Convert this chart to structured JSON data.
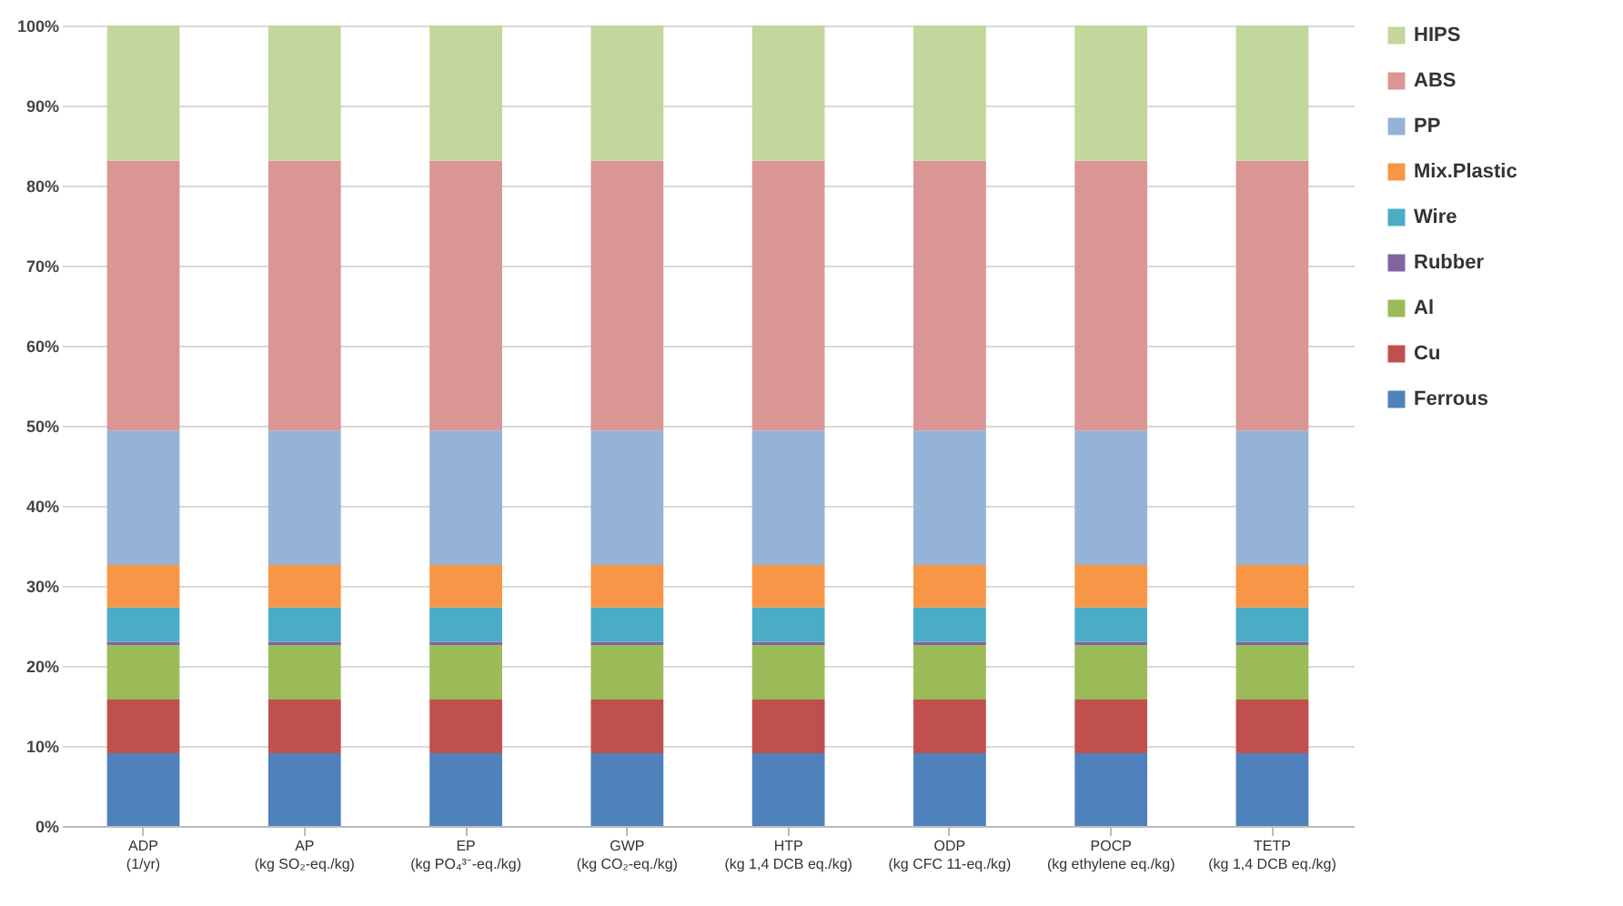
{
  "chart_data": {
    "type": "bar",
    "stacked": true,
    "categories": [
      "ADP\n(1/yr)",
      "AP\n(kg SO₂-eq./kg)",
      "EP\n(kg PO₄³⁻-eq./kg)",
      "GWP\n(kg CO₂-eq./kg)",
      "HTP\n(kg 1,4 DCB eq./kg)",
      "ODP\n(kg CFC 11-eq./kg)",
      "POCP\n(kg ethylene eq./kg)",
      "TETP\n(kg 1,4 DCB eq./kg)"
    ],
    "series": [
      {
        "name": "Ferrous",
        "color": "#4f81bd",
        "values": [
          9.1,
          9.1,
          9.1,
          9.1,
          9.1,
          9.1,
          9.1,
          9.1
        ]
      },
      {
        "name": "Cu",
        "color": "#c0504d",
        "values": [
          6.7,
          6.7,
          6.7,
          6.7,
          6.7,
          6.7,
          6.7,
          6.7
        ]
      },
      {
        "name": "Al",
        "color": "#9bbb59",
        "values": [
          6.8,
          6.8,
          6.8,
          6.8,
          6.8,
          6.8,
          6.8,
          6.8
        ]
      },
      {
        "name": "Rubber",
        "color": "#8064a2",
        "values": [
          0.4,
          0.4,
          0.4,
          0.4,
          0.4,
          0.4,
          0.4,
          0.4
        ]
      },
      {
        "name": "Wire",
        "color": "#4bacc6",
        "values": [
          4.3,
          4.3,
          4.3,
          4.3,
          4.3,
          4.3,
          4.3,
          4.3
        ]
      },
      {
        "name": "Mix.Plastic",
        "color": "#f79646",
        "values": [
          5.3,
          5.3,
          5.3,
          5.3,
          5.3,
          5.3,
          5.3,
          5.3
        ]
      },
      {
        "name": "PP",
        "color": "#95b3d7",
        "values": [
          16.8,
          16.8,
          16.8,
          16.8,
          16.8,
          16.8,
          16.8,
          16.8
        ]
      },
      {
        "name": "ABS",
        "color": "#d99694",
        "values": [
          33.7,
          33.7,
          33.7,
          33.7,
          33.7,
          33.7,
          33.7,
          33.7
        ]
      },
      {
        "name": "HIPS",
        "color": "#c3d69b",
        "values": [
          16.9,
          16.9,
          16.9,
          16.9,
          16.9,
          16.9,
          16.9,
          16.9
        ]
      }
    ],
    "ylim": [
      0,
      100
    ],
    "yticks": [
      {
        "value": 0,
        "label": "0%"
      },
      {
        "value": 10,
        "label": "10%"
      },
      {
        "value": 20,
        "label": "20%"
      },
      {
        "value": 30,
        "label": "30%"
      },
      {
        "value": 40,
        "label": "40%"
      },
      {
        "value": 50,
        "label": "50%"
      },
      {
        "value": 60,
        "label": "60%"
      },
      {
        "value": 70,
        "label": "70%"
      },
      {
        "value": 80,
        "label": "80%"
      },
      {
        "value": 90,
        "label": "90%"
      },
      {
        "value": 100,
        "label": "100%"
      }
    ],
    "grid": "y",
    "legend": "right"
  }
}
